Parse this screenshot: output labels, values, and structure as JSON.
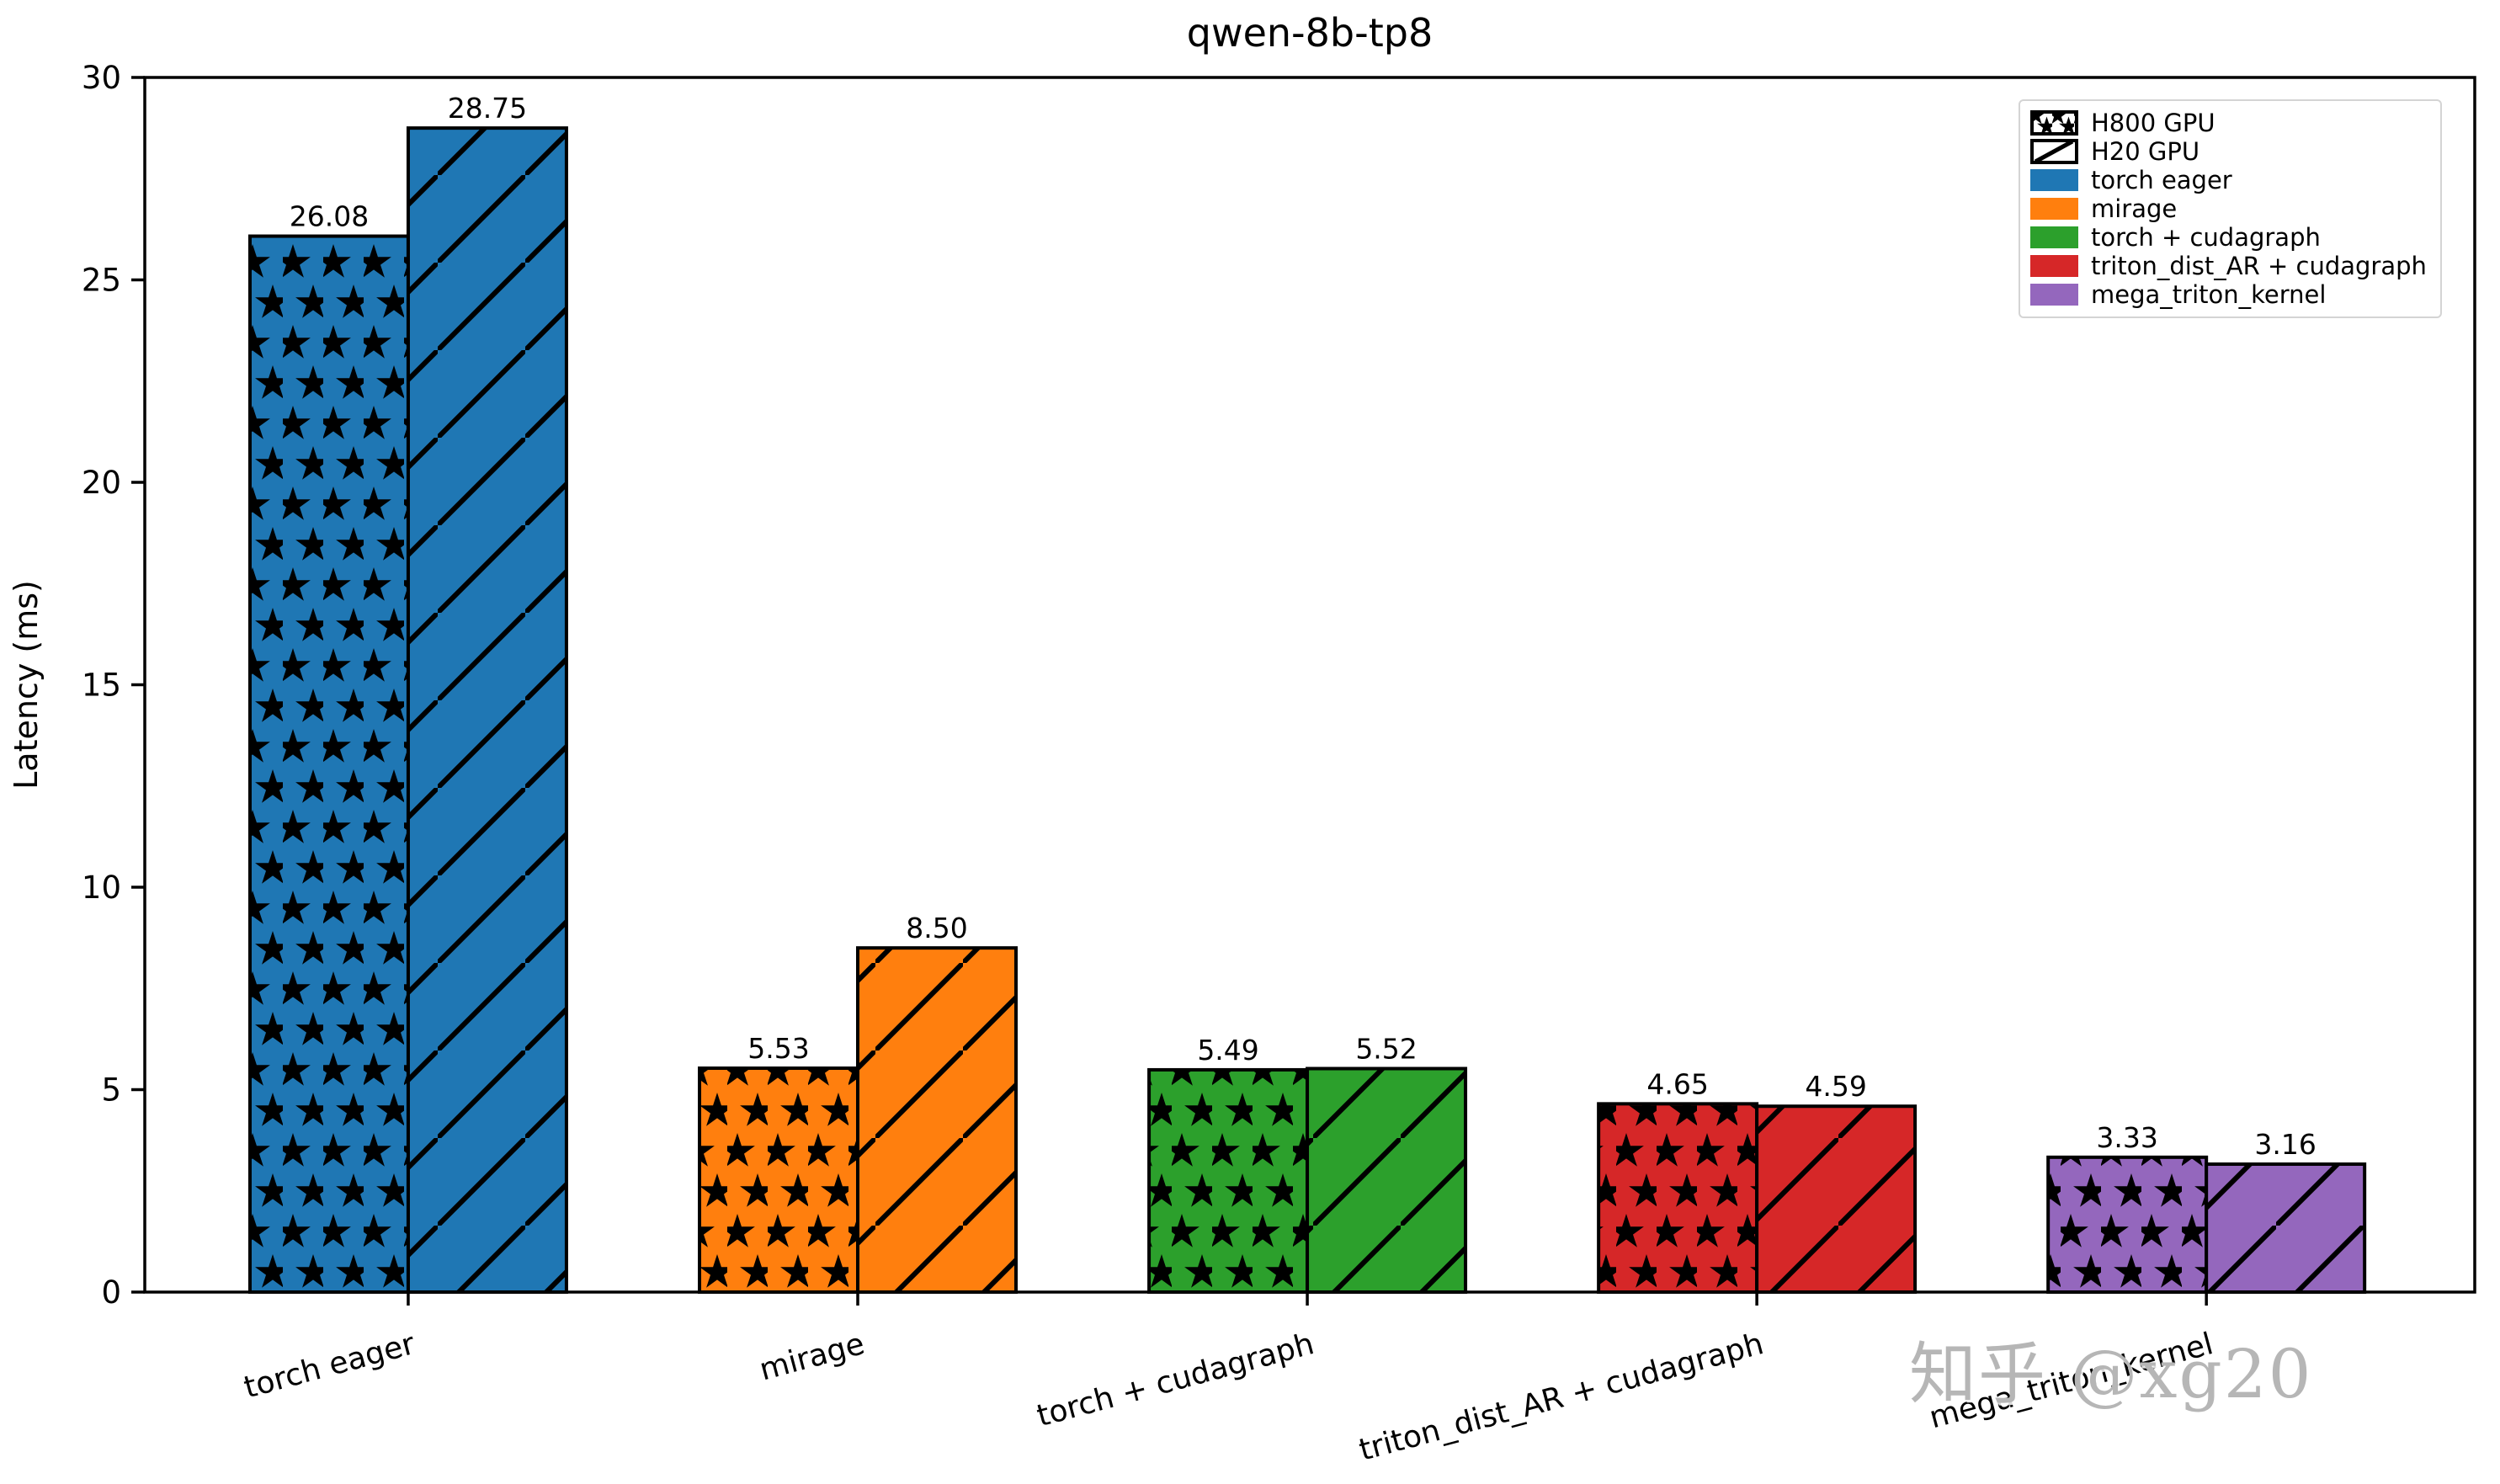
{
  "figure": {
    "title": "qwen-8b-tp8",
    "watermark": "知乎 @xg20"
  },
  "chart_data": {
    "type": "bar",
    "title": "qwen-8b-tp8",
    "xlabel": "",
    "ylabel": "Latency (ms)",
    "ylim": [
      0,
      30
    ],
    "yticks": [
      0,
      5,
      10,
      15,
      20,
      25,
      30
    ],
    "grid": false,
    "legend_location": "upper right",
    "categories": [
      "torch eager",
      "mirage",
      "torch + cudagraph",
      "triton_dist_AR + cudagraph",
      "mega_triton_kernel"
    ],
    "category_colors": [
      "#1f77b4",
      "#ff7f0e",
      "#2ca02c",
      "#d62728",
      "#9467bd"
    ],
    "series": [
      {
        "name": "H800 GPU",
        "hatch": "stars",
        "values": [
          26.08,
          5.53,
          5.49,
          4.65,
          3.33
        ],
        "value_labels": [
          "26.08",
          "5.53",
          "5.49",
          "4.65",
          "3.33"
        ]
      },
      {
        "name": "H20 GPU",
        "hatch": "diagonal",
        "values": [
          28.75,
          8.5,
          5.52,
          4.59,
          3.16
        ],
        "value_labels": [
          "28.75",
          "8.50",
          "5.52",
          "4.59",
          "3.16"
        ]
      }
    ],
    "legend": [
      {
        "label": "H800 GPU",
        "swatch": "stars"
      },
      {
        "label": "H20 GPU",
        "swatch": "diagonal"
      },
      {
        "label": "torch eager",
        "swatch": "#1f77b4"
      },
      {
        "label": "mirage",
        "swatch": "#ff7f0e"
      },
      {
        "label": "torch + cudagraph",
        "swatch": "#2ca02c"
      },
      {
        "label": "triton_dist_AR + cudagraph",
        "swatch": "#d62728"
      },
      {
        "label": "mega_triton_kernel",
        "swatch": "#9467bd"
      }
    ]
  }
}
